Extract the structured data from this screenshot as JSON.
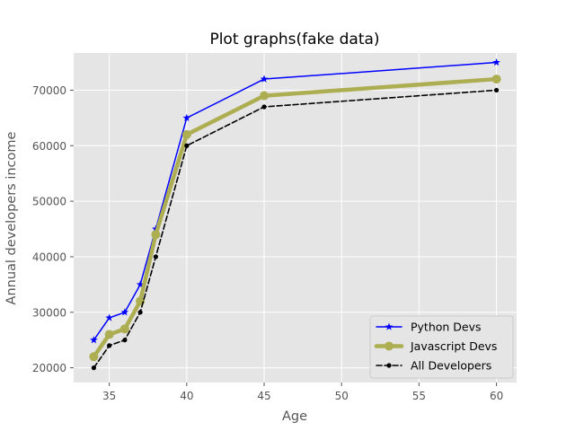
{
  "chart_data": {
    "type": "line",
    "title": "Plot graphs(fake data)",
    "xlabel": "Age",
    "ylabel": "Annual developers income",
    "xlim": [
      32.7,
      61.3
    ],
    "ylim": [
      17350,
      76700
    ],
    "xticks": [
      35,
      40,
      45,
      50,
      55,
      60
    ],
    "yticks": [
      20000,
      30000,
      40000,
      50000,
      60000,
      70000
    ],
    "grid": true,
    "legend_position": "lower-right",
    "x": [
      34,
      35,
      36,
      37,
      38,
      40,
      45,
      60
    ],
    "series": [
      {
        "name": "Python Devs",
        "values": [
          25000,
          29000,
          30000,
          35000,
          45000,
          65000,
          72000,
          75000
        ],
        "color": "#0000ff",
        "line_style": "solid",
        "marker": "star"
      },
      {
        "name": "Javascript Devs",
        "values": [
          22000,
          26000,
          27000,
          32000,
          44000,
          62000,
          69000,
          72000
        ],
        "color": "#adad52",
        "line_style": "solid-thick",
        "marker": "circle"
      },
      {
        "name": "All Developers",
        "values": [
          20000,
          24000,
          25000,
          30000,
          40000,
          60000,
          67000,
          70000
        ],
        "color": "#000000",
        "line_style": "dashed",
        "marker": "dot"
      }
    ]
  }
}
